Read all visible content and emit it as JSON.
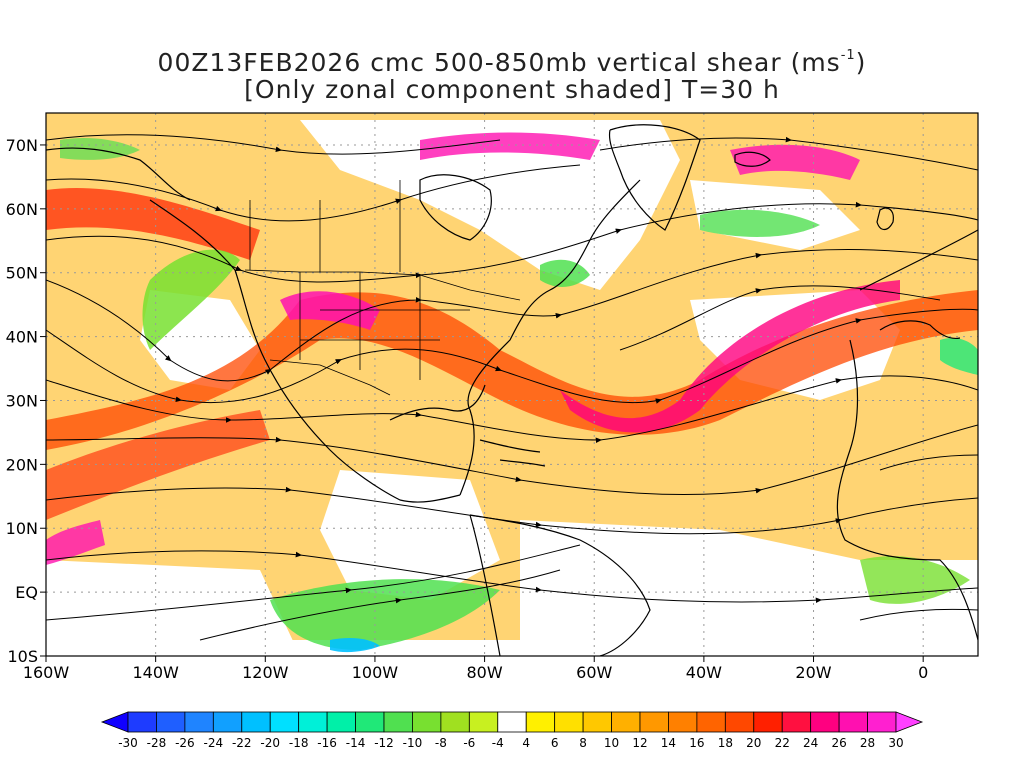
{
  "title": {
    "line1_prefix": "00Z13FEB2026 cmc 500-850mb vertical shear (ms",
    "line1_sup": "-1",
    "line1_suffix": ")",
    "line2": "[Only zonal component shaded] T=30 h"
  },
  "map": {
    "lon_range": [
      -160,
      10
    ],
    "lat_range": [
      -10,
      75
    ],
    "lat_labels": [
      "70N",
      "60N",
      "50N",
      "40N",
      "30N",
      "20N",
      "10N",
      "EQ",
      "10S"
    ],
    "lat_values": [
      70,
      60,
      50,
      40,
      30,
      20,
      10,
      0,
      -10
    ],
    "lon_labels": [
      "160W",
      "140W",
      "120W",
      "100W",
      "80W",
      "60W",
      "40W",
      "20W",
      "0"
    ],
    "lon_values": [
      -160,
      -140,
      -120,
      -100,
      -80,
      -60,
      -40,
      -20,
      0
    ],
    "shaded_field": "zonal component of 500-850mb vertical shear",
    "overlay": "shear streamlines with arrowheads",
    "grid": "dotted gray"
  },
  "colorbar": {
    "labels": [
      "-30",
      "-28",
      "-26",
      "-24",
      "-22",
      "-20",
      "-18",
      "-16",
      "-14",
      "-12",
      "-10",
      "-8",
      "-6",
      "-4",
      "4",
      "6",
      "8",
      "10",
      "12",
      "14",
      "16",
      "18",
      "20",
      "22",
      "24",
      "26",
      "28",
      "30"
    ],
    "colors": [
      "#1e3cff",
      "#1f5fff",
      "#1f84ff",
      "#11a0ff",
      "#00c0ff",
      "#00e0ff",
      "#00f0d8",
      "#00f0a8",
      "#20e878",
      "#50e050",
      "#78e030",
      "#a0e020",
      "#c8f020",
      "#ffffff",
      "#fff000",
      "#ffe000",
      "#ffc800",
      "#ffb000",
      "#ff9800",
      "#ff8000",
      "#ff6400",
      "#ff4800",
      "#ff2000",
      "#ff1040",
      "#ff0080",
      "#ff10b0",
      "#ff20d0"
    ],
    "under_color": "#1000ff",
    "over_color": "#ff40ff"
  }
}
